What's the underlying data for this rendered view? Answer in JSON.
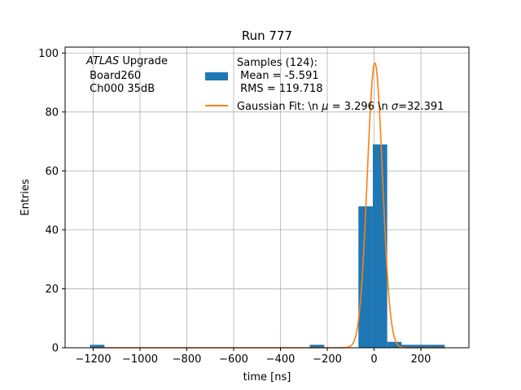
{
  "chart_data": {
    "type": "bar",
    "title": "Run 777",
    "xlabel": "time [ns]",
    "ylabel": "Entries",
    "xlim": [
      -1320,
      405
    ],
    "ylim": [
      0,
      102
    ],
    "xticks": [
      -1200,
      -1000,
      -800,
      -600,
      -400,
      -200,
      0,
      200
    ],
    "xtick_labels": [
      "−1200",
      "−1000",
      "−800",
      "−600",
      "−400",
      "−200",
      "0",
      "200"
    ],
    "yticks": [
      0,
      20,
      40,
      60,
      80,
      100
    ],
    "ytick_labels": [
      "0",
      "20",
      "40",
      "60",
      "80",
      "100"
    ],
    "grid": true,
    "bin_width": 61.5,
    "histogram": {
      "name": "Samples (124):",
      "color": "#1f77b4",
      "bins": [
        {
          "x0": -1214,
          "x1": -1152,
          "count": 1
        },
        {
          "x0": -275,
          "x1": -213,
          "count": 1
        },
        {
          "x0": -67,
          "x1": -5.5,
          "count": 48
        },
        {
          "x0": -5.5,
          "x1": 56,
          "count": 69
        },
        {
          "x0": 56,
          "x1": 117.5,
          "count": 2
        },
        {
          "x0": 117.5,
          "x1": 179,
          "count": 1
        },
        {
          "x0": 179,
          "x1": 240.5,
          "count": 1
        },
        {
          "x0": 240.5,
          "x1": 302,
          "count": 1
        }
      ]
    },
    "gaussian_fit": {
      "color": "#ff7f0e",
      "mu": 3.296,
      "sigma": 32.391,
      "amplitude": 96.6,
      "x_range": [
        -1214,
        302
      ]
    },
    "legend": {
      "placement": "top-center",
      "hist_lines": [
        "Samples (124):",
        " Mean = -5.591",
        " RMS = 119.718"
      ],
      "fit_label_prefix": "Gaussian Fit: \\n ",
      "fit_mu_symbol": "μ",
      "fit_mu_text": " = 3.296 \\n ",
      "fit_sigma_symbol": "σ",
      "fit_sigma_text": "=32.391"
    },
    "annotation": {
      "line1_italic": "ATLAS",
      "line1_rest": " Upgrade",
      "line2": " Board260",
      "line3": " Ch000 35dB"
    }
  }
}
